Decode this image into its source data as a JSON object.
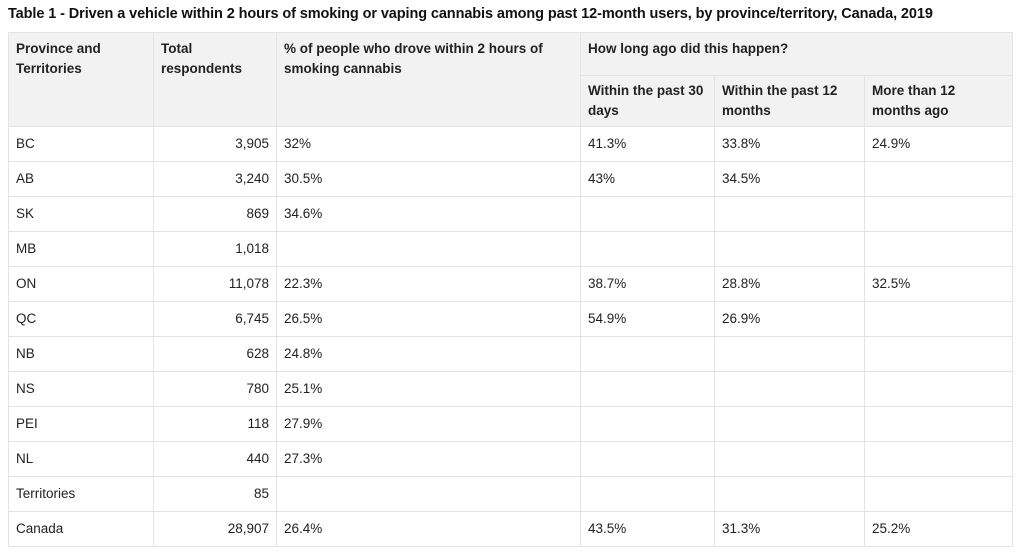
{
  "caption": "Table 1 - Driven a vehicle within 2 hours of smoking or vaping cannabis among past 12-month users, by province/territory, Canada, 2019",
  "headers": {
    "province": "Province and Territories",
    "total": "Total respondents",
    "percent": "% of people who drove within 2 hours of smoking cannabis",
    "group": "How long ago did this happen?",
    "sub": [
      "Within the past 30 days",
      "Within the past 12 months",
      "More than 12 months ago"
    ]
  },
  "rows": [
    {
      "region": "BC",
      "total": "3,905",
      "pct": "32%",
      "d30": "41.3%",
      "m12": "33.8%",
      "over12": "24.9%"
    },
    {
      "region": "AB",
      "total": "3,240",
      "pct": "30.5%",
      "d30": "43%",
      "m12": "34.5%",
      "over12": ""
    },
    {
      "region": "SK",
      "total": "869",
      "pct": "34.6%",
      "d30": "",
      "m12": "",
      "over12": ""
    },
    {
      "region": "MB",
      "total": "1,018",
      "pct": "",
      "d30": "",
      "m12": "",
      "over12": ""
    },
    {
      "region": "ON",
      "total": "11,078",
      "pct": "22.3%",
      "d30": "38.7%",
      "m12": "28.8%",
      "over12": "32.5%"
    },
    {
      "region": "QC",
      "total": "6,745",
      "pct": "26.5%",
      "d30": "54.9%",
      "m12": "26.9%",
      "over12": ""
    },
    {
      "region": "NB",
      "total": "628",
      "pct": "24.8%",
      "d30": "",
      "m12": "",
      "over12": ""
    },
    {
      "region": "NS",
      "total": "780",
      "pct": "25.1%",
      "d30": "",
      "m12": "",
      "over12": ""
    },
    {
      "region": "PEI",
      "total": "118",
      "pct": "27.9%",
      "d30": "",
      "m12": "",
      "over12": ""
    },
    {
      "region": "NL",
      "total": "440",
      "pct": "27.3%",
      "d30": "",
      "m12": "",
      "over12": ""
    },
    {
      "region": "Territories",
      "total": "85",
      "pct": "",
      "d30": "",
      "m12": "",
      "over12": ""
    },
    {
      "region": "Canada",
      "total": "28,907",
      "pct": "26.4%",
      "d30": "43.5%",
      "m12": "31.3%",
      "over12": "25.2%"
    }
  ]
}
